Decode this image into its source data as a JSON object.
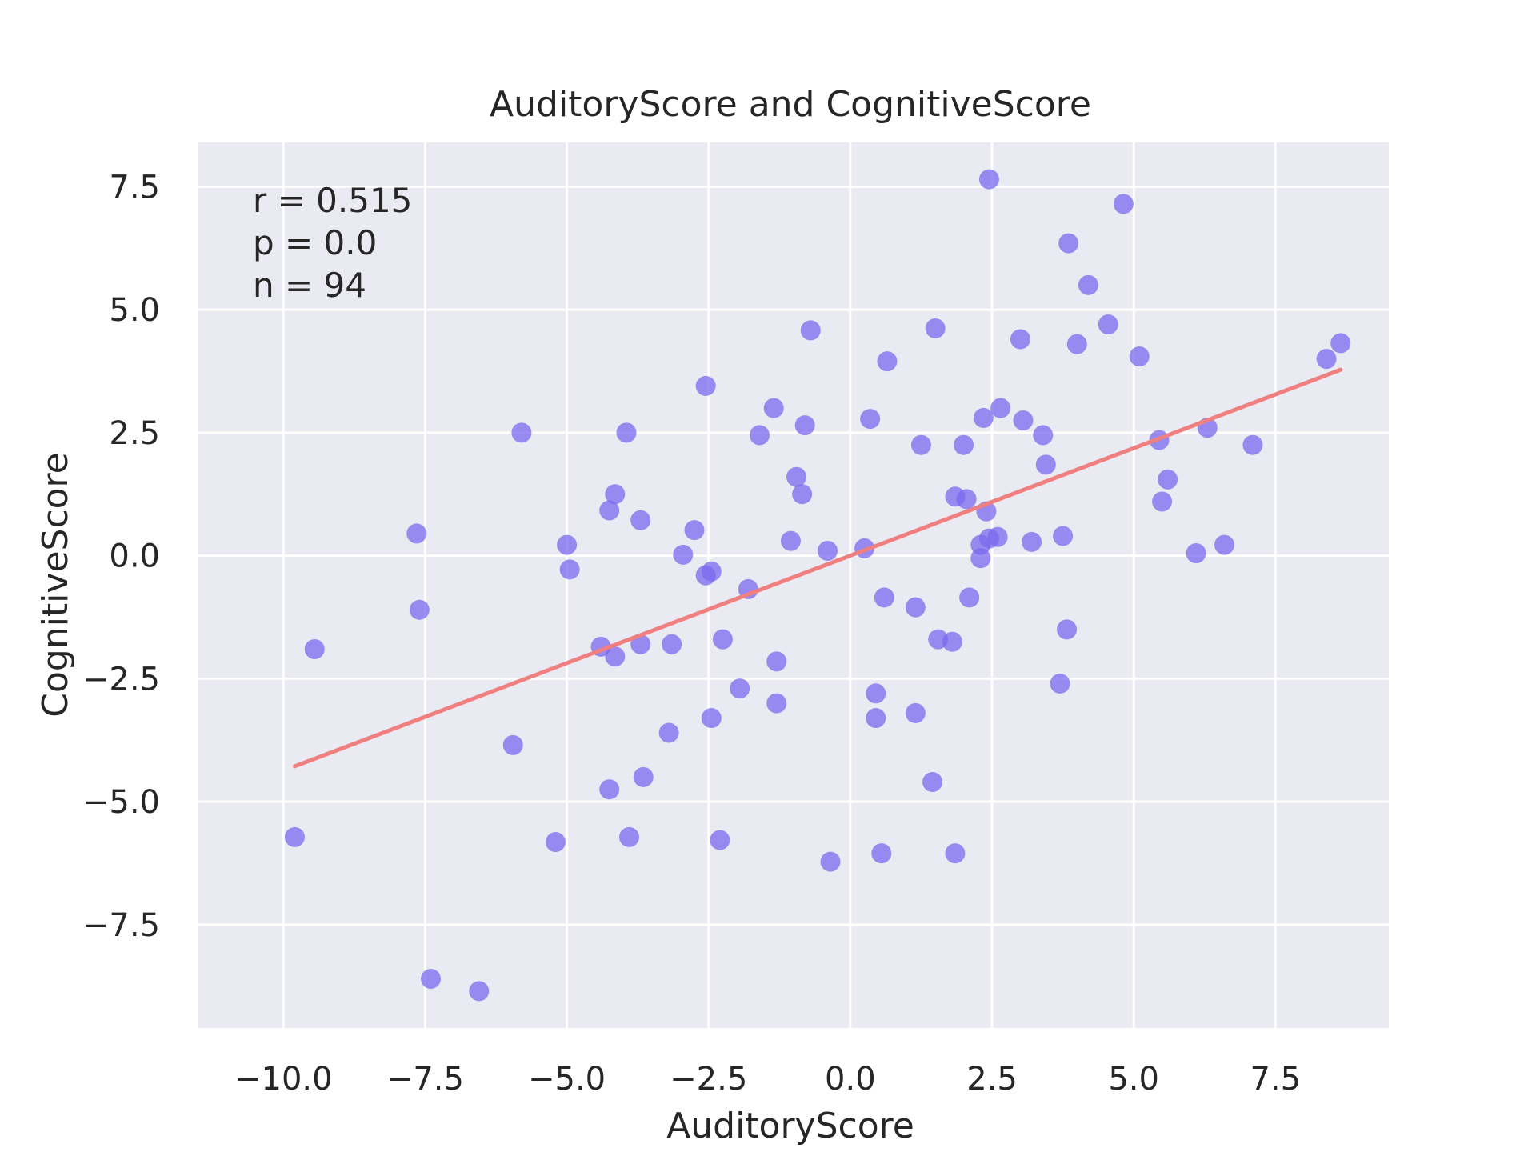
{
  "chart_data": {
    "type": "scatter",
    "title": "AuditoryScore and CognitiveScore",
    "xlabel": "AuditoryScore",
    "ylabel": "CognitiveScore",
    "xlim": [
      -11.5,
      9.5
    ],
    "ylim": [
      -9.6,
      8.4
    ],
    "xticks": [
      -10.0,
      -7.5,
      -5.0,
      -2.5,
      0.0,
      2.5,
      5.0,
      7.5
    ],
    "xtick_labels": [
      "−10.0",
      "−7.5",
      "−5.0",
      "−2.5",
      "0.0",
      "2.5",
      "5.0",
      "7.5"
    ],
    "yticks": [
      -7.5,
      -5.0,
      -2.5,
      0.0,
      2.5,
      5.0,
      7.5
    ],
    "ytick_labels": [
      "−7.5",
      "−5.0",
      "−2.5",
      "0.0",
      "2.5",
      "5.0",
      "7.5"
    ],
    "grid": true,
    "annotations": [
      "r = 0.515",
      "p = 0.0",
      "n = 94"
    ],
    "colors": {
      "point": "#7b68ee",
      "fit_line": "#f08080",
      "plot_background": "#eaeaf2",
      "grid": "#ffffff"
    },
    "fit_line": {
      "x": [
        -9.8,
        8.65
      ],
      "y": [
        -4.28,
        3.78
      ]
    },
    "points": {
      "x": [
        2.45,
        4.82,
        3.85,
        4.2,
        4.55,
        1.5,
        -0.7,
        3.0,
        4.0,
        5.1,
        8.4,
        8.65,
        0.65,
        -2.55,
        2.65,
        -1.35,
        0.35,
        3.05,
        2.35,
        -0.8,
        -1.6,
        -5.8,
        -3.95,
        3.4,
        5.45,
        6.3,
        7.1,
        2.0,
        1.25,
        3.45,
        -0.95,
        5.6,
        -4.15,
        -0.85,
        1.85,
        2.05,
        -4.25,
        2.4,
        5.5,
        -3.7,
        -2.75,
        2.6,
        2.45,
        3.75,
        2.3,
        3.2,
        -7.65,
        -1.05,
        -5.0,
        -2.45,
        -2.55,
        -0.4,
        0.25,
        -2.95,
        6.1,
        6.6,
        2.3,
        -4.95,
        -1.8,
        0.6,
        2.1,
        1.15,
        -7.6,
        1.55,
        1.8,
        3.82,
        -2.25,
        -3.7,
        -3.15,
        -4.4,
        -4.15,
        -1.3,
        -9.45,
        -1.95,
        3.7,
        0.45,
        0.45,
        -1.3,
        1.15,
        -2.45,
        -3.2,
        -5.95,
        -3.65,
        1.45,
        -4.25,
        -9.8,
        -3.9,
        -2.3,
        -5.2,
        0.55,
        1.85,
        -0.35,
        -7.4,
        -6.55
      ],
      "y": [
        7.65,
        7.15,
        6.35,
        5.5,
        4.7,
        4.62,
        4.58,
        4.4,
        4.3,
        4.05,
        4.0,
        4.32,
        3.95,
        3.45,
        3.0,
        3.0,
        2.78,
        2.75,
        2.8,
        2.65,
        2.45,
        2.5,
        2.5,
        2.45,
        2.35,
        2.6,
        2.25,
        2.25,
        2.25,
        1.85,
        1.6,
        1.55,
        1.25,
        1.25,
        1.2,
        1.15,
        0.92,
        0.9,
        1.1,
        0.72,
        0.52,
        0.38,
        0.35,
        0.4,
        0.22,
        0.28,
        0.45,
        0.3,
        0.22,
        -0.32,
        -0.4,
        0.1,
        0.15,
        0.02,
        0.05,
        0.22,
        -0.05,
        -0.28,
        -0.68,
        -0.85,
        -0.85,
        -1.05,
        -1.1,
        -1.7,
        -1.75,
        -1.5,
        -1.7,
        -1.8,
        -1.8,
        -1.85,
        -2.05,
        -2.15,
        -1.9,
        -2.7,
        -2.6,
        -2.8,
        -3.3,
        -3.0,
        -3.2,
        -3.3,
        -3.6,
        -3.85,
        -4.5,
        -4.6,
        -4.75,
        -5.72,
        -5.72,
        -5.78,
        -5.82,
        -6.05,
        -6.05,
        -6.22,
        -8.6,
        -8.85
      ]
    }
  }
}
